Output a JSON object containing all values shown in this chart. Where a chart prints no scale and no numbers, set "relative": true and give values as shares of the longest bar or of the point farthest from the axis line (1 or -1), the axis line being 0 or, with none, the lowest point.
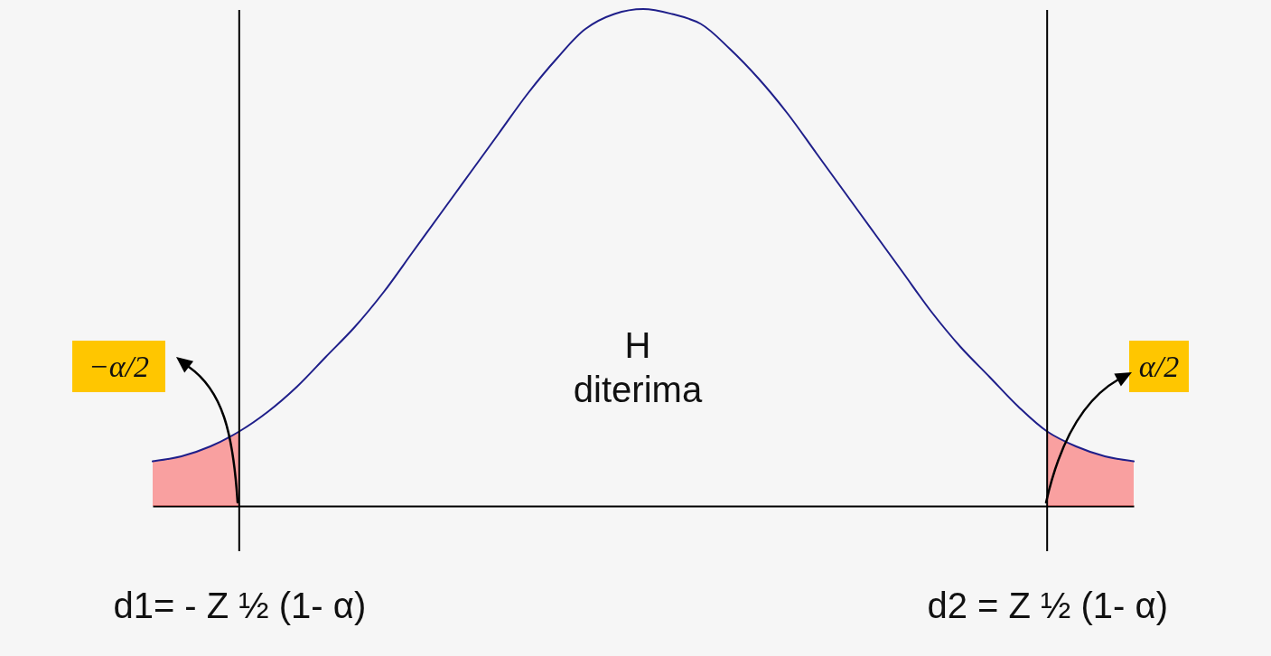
{
  "chart_data": {
    "type": "line",
    "relative": true,
    "categories": [
      null,
      null,
      null,
      "d1= - Z ½ (1- α)",
      null,
      null,
      null,
      null,
      null,
      null,
      null,
      null,
      null,
      null,
      null,
      null,
      null,
      null,
      null,
      null,
      null,
      null,
      null,
      null,
      null,
      null,
      null,
      null,
      null,
      null,
      null,
      "d2 = Z ½ (1- α)",
      null,
      null,
      null
    ],
    "series": [
      {
        "color": "#1f1f8a",
        "values": [
          0.09,
          0.1,
          0.12,
          0.15,
          0.19,
          0.24,
          0.3,
          0.36,
          0.43,
          0.51,
          0.59,
          0.67,
          0.75,
          0.83,
          0.9,
          0.96,
          0.99,
          1.0,
          0.99,
          0.97,
          0.92,
          0.86,
          0.79,
          0.71,
          0.63,
          0.55,
          0.47,
          0.39,
          0.32,
          0.26,
          0.2,
          0.15,
          0.12,
          0.1,
          0.09
        ]
      },
      {
        "type": "area",
        "color": "#ff2020",
        "values": [
          0.09,
          0.1,
          0.12,
          0.15,
          null,
          null,
          null,
          null,
          null,
          null,
          null,
          null,
          null,
          null,
          null,
          null,
          null,
          null,
          null,
          null,
          null,
          null,
          null,
          null,
          null,
          null,
          null,
          null,
          null,
          null,
          null,
          null,
          null,
          null,
          null
        ]
      },
      {
        "type": "area",
        "color": "#ff2020",
        "values": [
          null,
          null,
          null,
          null,
          null,
          null,
          null,
          null,
          null,
          null,
          null,
          null,
          null,
          null,
          null,
          null,
          null,
          null,
          null,
          null,
          null,
          null,
          null,
          null,
          null,
          null,
          null,
          null,
          null,
          null,
          null,
          0.15,
          0.12,
          0.1,
          0.09
        ]
      }
    ],
    "ref_lines": [
      {
        "axis": "x",
        "value": "d1= - Z ½ (1- α)",
        "color": "#000000"
      },
      {
        "axis": "x",
        "value": "d2 = Z ½ (1- α)",
        "color": "#000000"
      }
    ],
    "annotations": [
      "−α/2",
      "H diterima",
      "α/2"
    ]
  }
}
